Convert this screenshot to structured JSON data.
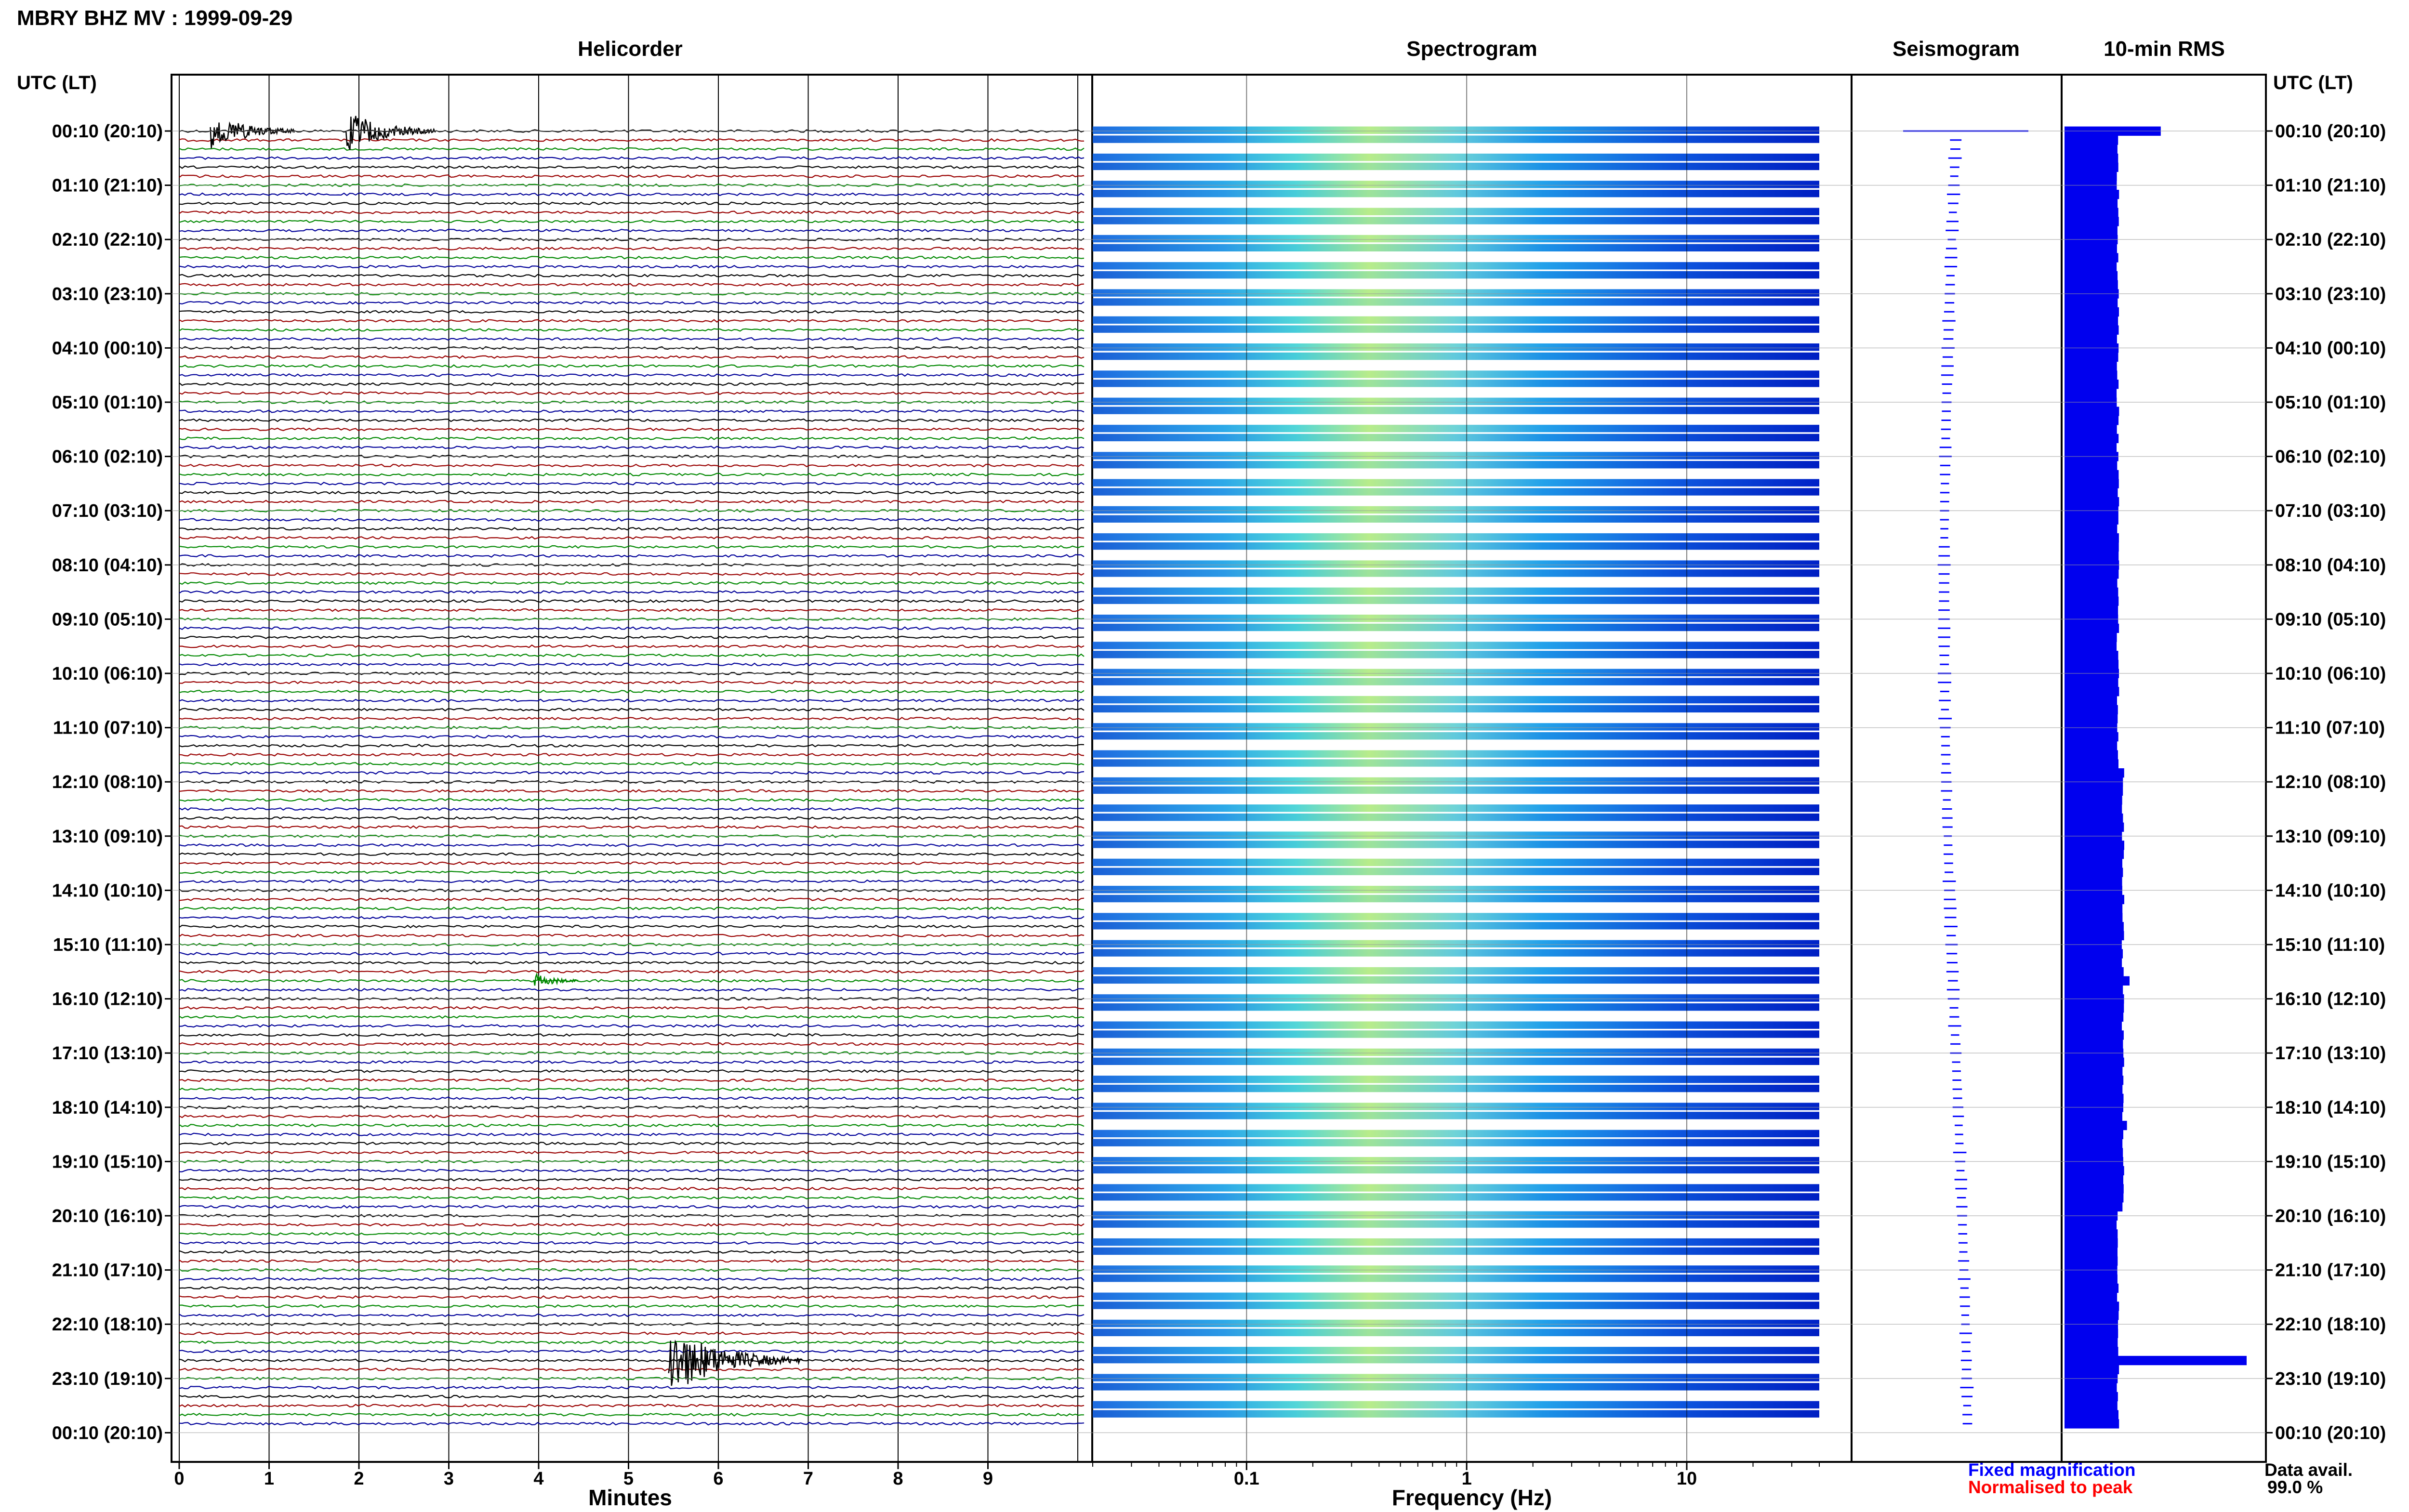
{
  "header": {
    "station_title": "MBRY BHZ MV : 1999-09-29",
    "utc_lt_left": "UTC (LT)",
    "utc_lt_right": "UTC (LT)"
  },
  "panels": {
    "helicorder": "Helicorder",
    "spectrogram": "Spectrogram",
    "seismogram": "Seismogram",
    "rms": "10-min RMS"
  },
  "axes": {
    "helicorder_xlabel": "Minutes",
    "spectrogram_xlabel": "Frequency (Hz)",
    "minute_ticks": [
      "0",
      "1",
      "2",
      "3",
      "4",
      "5",
      "6",
      "7",
      "8",
      "9"
    ],
    "freq_ticks": [
      "0.1",
      "1",
      "10"
    ]
  },
  "time_labels": [
    "00:10 (20:10)",
    "01:10 (21:10)",
    "02:10 (22:10)",
    "03:10 (23:10)",
    "04:10 (00:10)",
    "05:10 (01:10)",
    "06:10 (02:10)",
    "07:10 (03:10)",
    "08:10 (04:10)",
    "09:10 (05:10)",
    "10:10 (06:10)",
    "11:10 (07:10)",
    "12:10 (08:10)",
    "13:10 (09:10)",
    "14:10 (10:10)",
    "15:10 (11:10)",
    "16:10 (12:10)",
    "17:10 (13:10)",
    "18:10 (14:10)",
    "19:10 (15:10)",
    "20:10 (16:10)",
    "21:10 (17:10)",
    "22:10 (18:10)",
    "23:10 (19:10)",
    "00:10 (20:10)"
  ],
  "legend": {
    "fixed": "Fixed magnification",
    "normalised": "Normalised to peak",
    "fixed_color": "#0000ff",
    "normalised_color": "#ff0000"
  },
  "availability": {
    "label": "Data avail.",
    "value": "99.0 %"
  },
  "colors": {
    "trace_cycle": [
      "#000000",
      "#990000",
      "#008800",
      "#000099"
    ],
    "rms_bar": "#0000ee"
  },
  "chart_data": {
    "type": "heatmap",
    "rows_per_hour": 6,
    "total_rows": 144,
    "helicorder_events": [
      {
        "row": 0,
        "minute": 0.4,
        "amplitude": 0.9
      },
      {
        "row": 0,
        "minute": 1.9,
        "amplitude": 1.0
      },
      {
        "row": 94,
        "minute": 4.0,
        "amplitude": 0.35
      },
      {
        "row": 136,
        "minute": 5.5,
        "amplitude": 1.6
      }
    ],
    "spectrogram_freq_range": [
      0.02,
      40
    ],
    "rms_values": [
      0.37,
      0.22,
      0.21,
      0.2,
      0.2,
      0.19
    ],
    "rms_peaks": [
      {
        "row": 0,
        "value": 0.37
      },
      {
        "row": 94,
        "value": 0.25
      },
      {
        "row": 110,
        "value": 0.24
      },
      {
        "row": 136,
        "value": 0.7
      }
    ]
  }
}
